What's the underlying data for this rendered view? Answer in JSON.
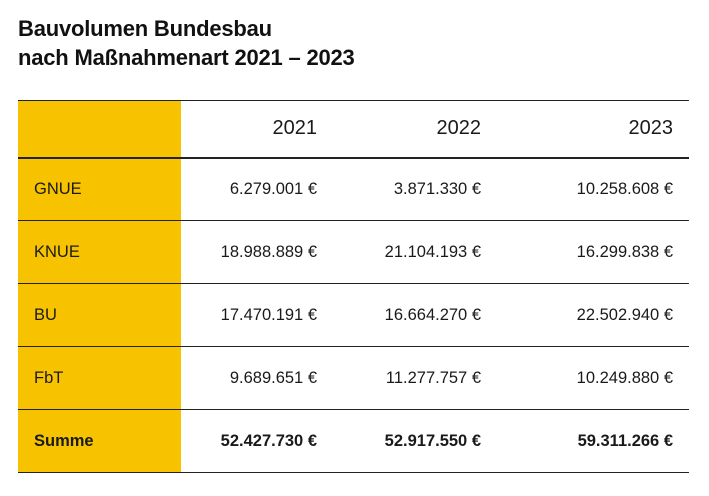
{
  "title": {
    "line1": "Bauvolumen Bundesbau",
    "line2": "nach Maßnahmenart 2021 – 2023"
  },
  "accent_color": "#f7c300",
  "table": {
    "headers": [
      "",
      "2021",
      "2022",
      "2023"
    ],
    "rows": [
      {
        "label": "GNUE",
        "values": [
          "6.279.001 €",
          "3.871.330 €",
          "10.258.608 €"
        ]
      },
      {
        "label": "KNUE",
        "values": [
          "18.988.889 €",
          "21.104.193 €",
          "16.299.838 €"
        ]
      },
      {
        "label": "BU",
        "values": [
          "17.470.191 €",
          "16.664.270 €",
          "22.502.940 €"
        ]
      },
      {
        "label": "FbT",
        "values": [
          "9.689.651 €",
          "11.277.757 €",
          "10.249.880 €"
        ]
      },
      {
        "label": "Summe",
        "values": [
          "52.427.730 €",
          "52.917.550 €",
          "59.311.266 €"
        ]
      }
    ]
  }
}
